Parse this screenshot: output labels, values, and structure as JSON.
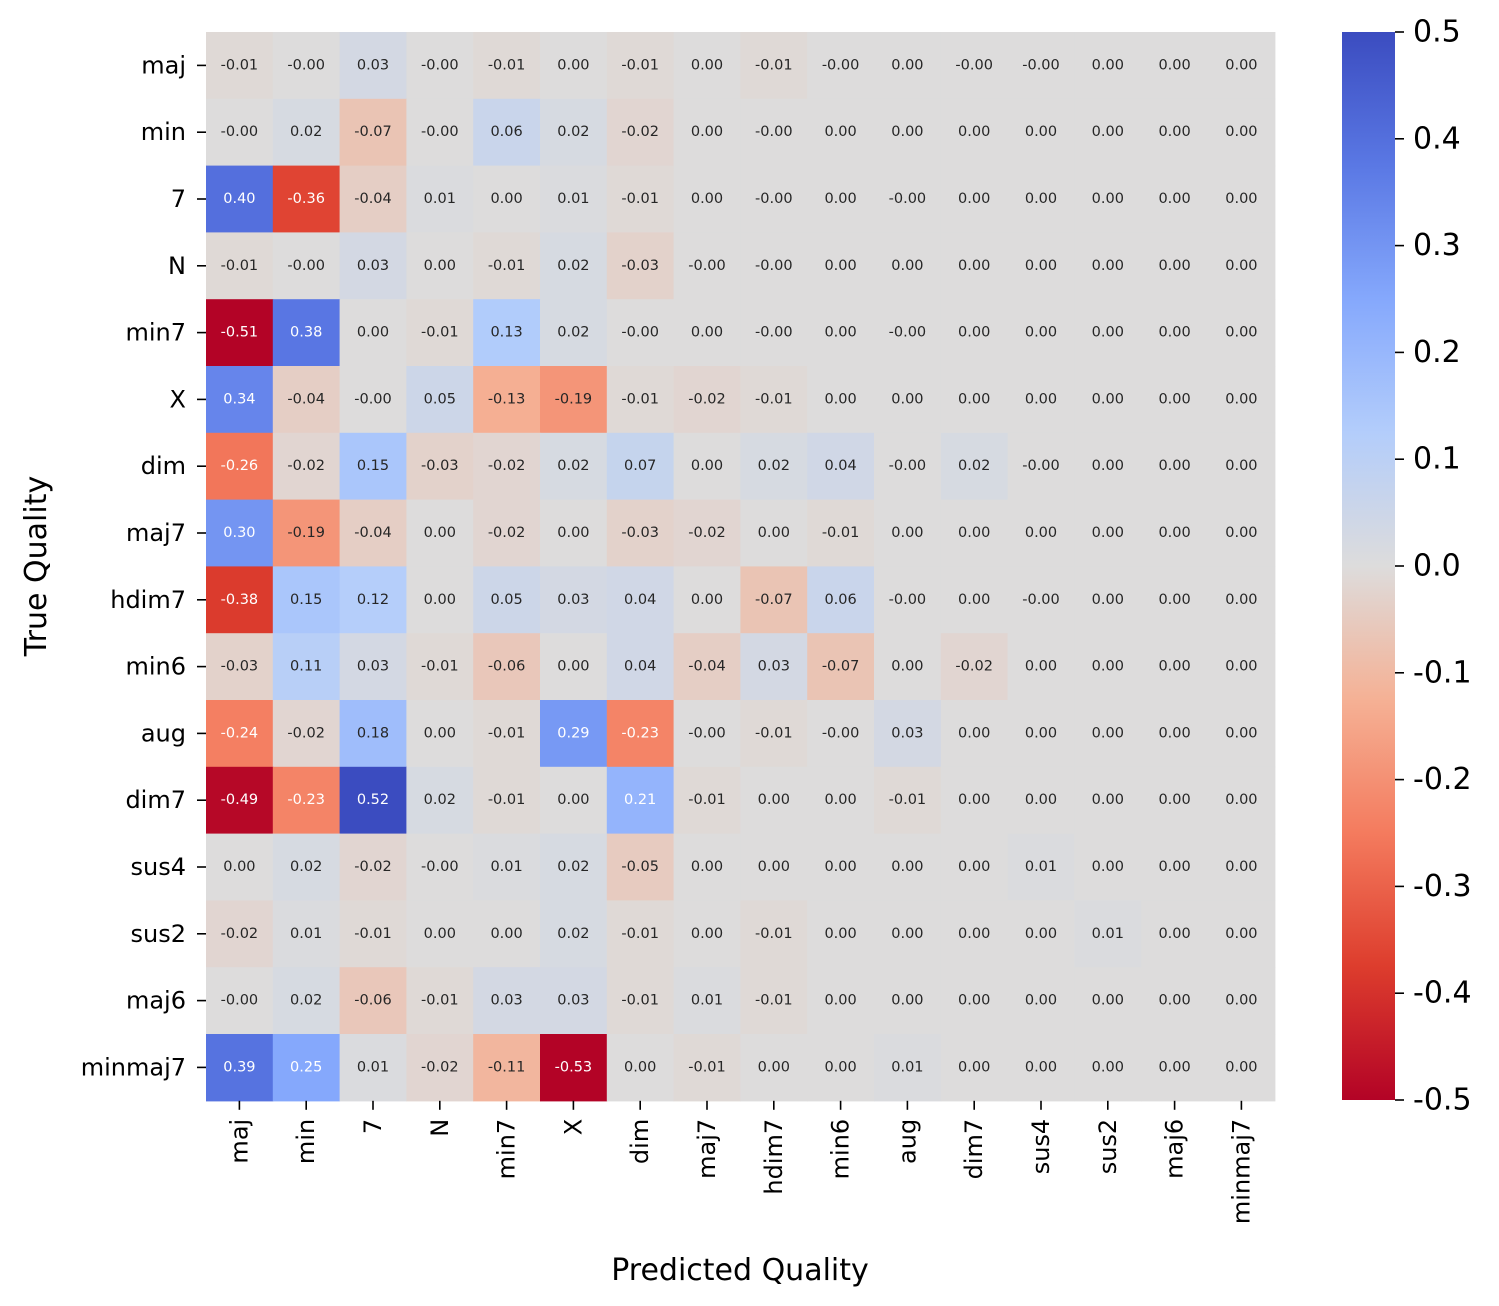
{
  "chart_data": {
    "type": "heatmap",
    "title": "",
    "xlabel": "Predicted Quality",
    "ylabel": "True Quality",
    "colormap": "coolwarm_r",
    "vmin": -0.5,
    "vmax": 0.5,
    "colorbar_ticks": [
      "0.5",
      "0.4",
      "0.3",
      "0.2",
      "0.1",
      "0.0",
      "-0.1",
      "-0.2",
      "-0.3",
      "-0.4",
      "-0.5"
    ],
    "colorbar_tick_values": [
      0.5,
      0.4,
      0.3,
      0.2,
      0.1,
      0.0,
      -0.1,
      -0.2,
      -0.3,
      -0.4,
      -0.5
    ],
    "x_categories": [
      "maj",
      "min",
      "7",
      "N",
      "min7",
      "X",
      "dim",
      "maj7",
      "hdim7",
      "min6",
      "aug",
      "dim7",
      "sus4",
      "sus2",
      "maj6",
      "minmaj7"
    ],
    "y_categories": [
      "maj",
      "min",
      "7",
      "N",
      "min7",
      "X",
      "dim",
      "maj7",
      "hdim7",
      "min6",
      "aug",
      "dim7",
      "sus4",
      "sus2",
      "maj6",
      "minmaj7"
    ],
    "annotations": [
      [
        "-0.01",
        "-0.00",
        "0.03",
        "-0.00",
        "-0.01",
        "0.00",
        "-0.01",
        "0.00",
        "-0.01",
        "-0.00",
        "0.00",
        "-0.00",
        "-0.00",
        "0.00",
        "0.00",
        "0.00"
      ],
      [
        "-0.00",
        "0.02",
        "-0.07",
        "-0.00",
        "0.06",
        "0.02",
        "-0.02",
        "0.00",
        "-0.00",
        "0.00",
        "0.00",
        "0.00",
        "0.00",
        "0.00",
        "0.00",
        "0.00"
      ],
      [
        "0.40",
        "-0.36",
        "-0.04",
        "0.01",
        "0.00",
        "0.01",
        "-0.01",
        "0.00",
        "-0.00",
        "0.00",
        "-0.00",
        "0.00",
        "0.00",
        "0.00",
        "0.00",
        "0.00"
      ],
      [
        "-0.01",
        "-0.00",
        "0.03",
        "0.00",
        "-0.01",
        "0.02",
        "-0.03",
        "-0.00",
        "-0.00",
        "0.00",
        "0.00",
        "0.00",
        "0.00",
        "0.00",
        "0.00",
        "0.00"
      ],
      [
        "-0.51",
        "0.38",
        "0.00",
        "-0.01",
        "0.13",
        "0.02",
        "-0.00",
        "0.00",
        "-0.00",
        "0.00",
        "-0.00",
        "0.00",
        "0.00",
        "0.00",
        "0.00",
        "0.00"
      ],
      [
        "0.34",
        "-0.04",
        "-0.00",
        "0.05",
        "-0.13",
        "-0.19",
        "-0.01",
        "-0.02",
        "-0.01",
        "0.00",
        "0.00",
        "0.00",
        "0.00",
        "0.00",
        "0.00",
        "0.00"
      ],
      [
        "-0.26",
        "-0.02",
        "0.15",
        "-0.03",
        "-0.02",
        "0.02",
        "0.07",
        "0.00",
        "0.02",
        "0.04",
        "-0.00",
        "0.02",
        "-0.00",
        "0.00",
        "0.00",
        "0.00"
      ],
      [
        "0.30",
        "-0.19",
        "-0.04",
        "0.00",
        "-0.02",
        "0.00",
        "-0.03",
        "-0.02",
        "0.00",
        "-0.01",
        "0.00",
        "0.00",
        "0.00",
        "0.00",
        "0.00",
        "0.00"
      ],
      [
        "-0.38",
        "0.15",
        "0.12",
        "0.00",
        "0.05",
        "0.03",
        "0.04",
        "0.00",
        "-0.07",
        "0.06",
        "-0.00",
        "0.00",
        "-0.00",
        "0.00",
        "0.00",
        "0.00"
      ],
      [
        "-0.03",
        "0.11",
        "0.03",
        "-0.01",
        "-0.06",
        "0.00",
        "0.04",
        "-0.04",
        "0.03",
        "-0.07",
        "0.00",
        "-0.02",
        "0.00",
        "0.00",
        "0.00",
        "0.00"
      ],
      [
        "-0.24",
        "-0.02",
        "0.18",
        "0.00",
        "-0.01",
        "0.29",
        "-0.23",
        "-0.00",
        "-0.01",
        "-0.00",
        "0.03",
        "0.00",
        "0.00",
        "0.00",
        "0.00",
        "0.00"
      ],
      [
        "-0.49",
        "-0.23",
        "0.52",
        "0.02",
        "-0.01",
        "0.00",
        "0.21",
        "-0.01",
        "0.00",
        "0.00",
        "-0.01",
        "0.00",
        "0.00",
        "0.00",
        "0.00",
        "0.00"
      ],
      [
        "0.00",
        "0.02",
        "-0.02",
        "-0.00",
        "0.01",
        "0.02",
        "-0.05",
        "0.00",
        "0.00",
        "0.00",
        "0.00",
        "0.00",
        "0.01",
        "0.00",
        "0.00",
        "0.00"
      ],
      [
        "-0.02",
        "0.01",
        "-0.01",
        "0.00",
        "0.00",
        "0.02",
        "-0.01",
        "0.00",
        "-0.01",
        "0.00",
        "0.00",
        "0.00",
        "0.00",
        "0.01",
        "0.00",
        "0.00"
      ],
      [
        "-0.00",
        "0.02",
        "-0.06",
        "-0.01",
        "0.03",
        "0.03",
        "-0.01",
        "0.01",
        "-0.01",
        "0.00",
        "0.00",
        "0.00",
        "0.00",
        "0.00",
        "0.00",
        "0.00"
      ],
      [
        "0.39",
        "0.25",
        "0.01",
        "-0.02",
        "-0.11",
        "-0.53",
        "0.00",
        "-0.01",
        "0.00",
        "0.00",
        "0.01",
        "0.00",
        "0.00",
        "0.00",
        "0.00",
        "0.00"
      ]
    ]
  }
}
